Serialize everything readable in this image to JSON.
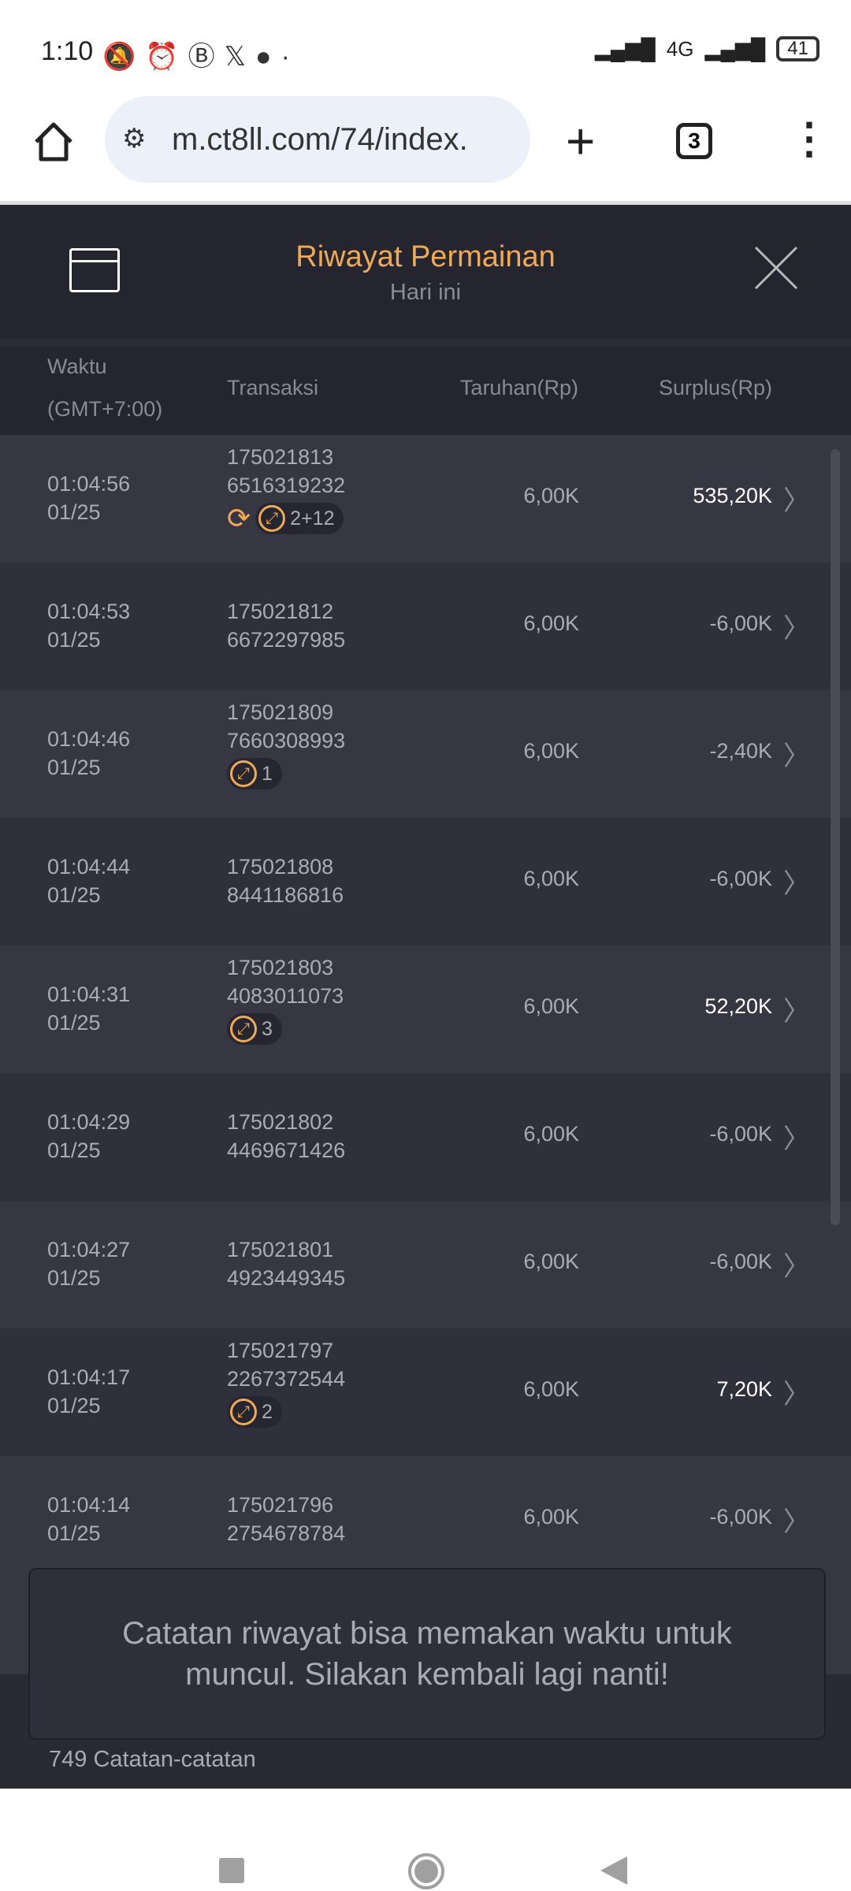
{
  "status_bar": {
    "time": "1:10",
    "network": "4G",
    "battery": "41"
  },
  "browser": {
    "url": "m.ct8ll.com/74/index.",
    "tab_count": "3"
  },
  "header": {
    "title": "Riwayat Permainan",
    "subtitle": "Hari ini"
  },
  "colors": {
    "accent": "#f0a957",
    "background": "#2a2b35"
  },
  "columns": {
    "time": "Waktu",
    "tz": "(GMT+7:00)",
    "transaction": "Transaksi",
    "bet": "Taruhan(Rp)",
    "surplus": "Surplus(Rp)"
  },
  "rows": [
    {
      "time": "01:04:56",
      "date": "01/25",
      "tx1": "175021813",
      "tx2": "6516319232",
      "bet": "6,00K",
      "surplus": "535,20K",
      "positive": true,
      "spin": true,
      "badge": "2+12"
    },
    {
      "time": "01:04:53",
      "date": "01/25",
      "tx1": "175021812",
      "tx2": "6672297985",
      "bet": "6,00K",
      "surplus": "-6,00K"
    },
    {
      "time": "01:04:46",
      "date": "01/25",
      "tx1": "175021809",
      "tx2": "7660308993",
      "bet": "6,00K",
      "surplus": "-2,40K",
      "badge": "1"
    },
    {
      "time": "01:04:44",
      "date": "01/25",
      "tx1": "175021808",
      "tx2": "8441186816",
      "bet": "6,00K",
      "surplus": "-6,00K"
    },
    {
      "time": "01:04:31",
      "date": "01/25",
      "tx1": "175021803",
      "tx2": "4083011073",
      "bet": "6,00K",
      "surplus": "52,20K",
      "positive": true,
      "badge": "3"
    },
    {
      "time": "01:04:29",
      "date": "01/25",
      "tx1": "175021802",
      "tx2": "4469671426",
      "bet": "6,00K",
      "surplus": "-6,00K"
    },
    {
      "time": "01:04:27",
      "date": "01/25",
      "tx1": "175021801",
      "tx2": "4923449345",
      "bet": "6,00K",
      "surplus": "-6,00K"
    },
    {
      "time": "01:04:17",
      "date": "01/25",
      "tx1": "175021797",
      "tx2": "2267372544",
      "bet": "6,00K",
      "surplus": "7,20K",
      "positive": true,
      "badge": "2"
    },
    {
      "time": "01:04:14",
      "date": "01/25",
      "tx1": "175021796",
      "tx2": "2754678784",
      "bet": "6,00K",
      "surplus": "-6,00K"
    }
  ],
  "footer": {
    "count": "749 Catatan-catatan"
  },
  "toast": {
    "message": "Catatan riwayat bisa memakan waktu untuk muncul. Silakan kembali lagi nanti!"
  }
}
